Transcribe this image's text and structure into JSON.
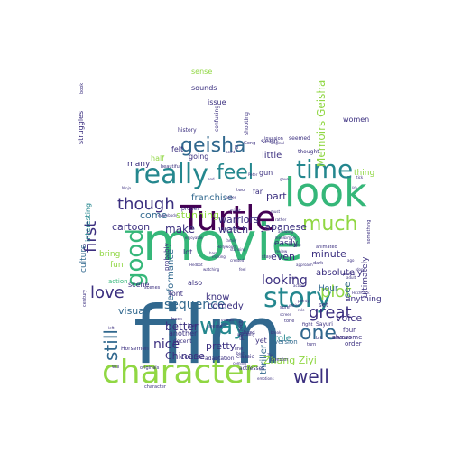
{
  "colors": {
    "background": "#ffffff",
    "dark_purple": "#440154",
    "indigo": "#3b2f7f",
    "blue": "#31688e",
    "teal": "#24878e",
    "green": "#35b779",
    "lime": "#90d743",
    "yellow": "#d8e219"
  },
  "words": [
    {
      "text": "movie",
      "c": "green"
    },
    {
      "text": "film",
      "c": "blue"
    },
    {
      "text": "Turtle",
      "c": "dark_purple"
    },
    {
      "text": "look",
      "c": "green"
    },
    {
      "text": "character",
      "c": "lime"
    },
    {
      "text": "really",
      "c": "teal"
    },
    {
      "text": "time",
      "c": "teal"
    },
    {
      "text": "story",
      "c": "teal"
    },
    {
      "text": "geisha",
      "c": "blue"
    },
    {
      "text": "feel",
      "c": "teal"
    },
    {
      "text": "good",
      "c": "green"
    },
    {
      "text": "much",
      "c": "lime"
    },
    {
      "text": "way",
      "c": "teal"
    },
    {
      "text": "love",
      "c": "indigo"
    },
    {
      "text": "well",
      "c": "indigo"
    },
    {
      "text": "still",
      "c": "blue"
    },
    {
      "text": "first",
      "c": "indigo"
    },
    {
      "text": "though",
      "c": "indigo"
    },
    {
      "text": "one",
      "c": "blue"
    },
    {
      "text": "great",
      "c": "indigo"
    },
    {
      "text": "plot",
      "c": "lime"
    },
    {
      "text": "Memoirs Geisha",
      "c": "lime"
    },
    {
      "text": "sequence",
      "c": "blue"
    },
    {
      "text": "Japanese",
      "c": "indigo"
    },
    {
      "text": "looking",
      "c": "indigo"
    },
    {
      "text": "better",
      "c": "indigo"
    },
    {
      "text": "nice",
      "c": "indigo"
    },
    {
      "text": "Zhang Ziyi",
      "c": "lime"
    },
    {
      "text": "visual",
      "c": "blue"
    },
    {
      "text": "minute",
      "c": "indigo"
    },
    {
      "text": "warriors",
      "c": "indigo"
    },
    {
      "text": "make",
      "c": "indigo"
    },
    {
      "text": "watch",
      "c": "indigo"
    },
    {
      "text": "come",
      "c": "blue"
    },
    {
      "text": "stunning",
      "c": "lime"
    },
    {
      "text": "cartoon",
      "c": "indigo"
    },
    {
      "text": "franchise",
      "c": "blue"
    },
    {
      "text": "Chinese",
      "c": "indigo"
    },
    {
      "text": "pretty",
      "c": "indigo"
    },
    {
      "text": "comedy",
      "c": "indigo"
    },
    {
      "text": "know",
      "c": "indigo"
    },
    {
      "text": "part",
      "c": "indigo"
    },
    {
      "text": "little",
      "c": "indigo"
    },
    {
      "text": "even",
      "c": "indigo"
    },
    {
      "text": "see",
      "c": "blue"
    },
    {
      "text": "role",
      "c": "teal"
    },
    {
      "text": "voice",
      "c": "indigo"
    },
    {
      "text": "thriller",
      "c": "blue"
    },
    {
      "text": "absolutely",
      "c": "indigo"
    },
    {
      "text": "ultimately",
      "c": "indigo"
    },
    {
      "text": "anything",
      "c": "indigo"
    },
    {
      "text": "easily",
      "c": "indigo"
    },
    {
      "text": "performance",
      "c": "blue"
    },
    {
      "text": "Hour",
      "c": "blue"
    },
    {
      "text": "many",
      "c": "indigo"
    },
    {
      "text": "felt",
      "c": "indigo"
    },
    {
      "text": "fun",
      "c": "lime"
    },
    {
      "text": "bring",
      "c": "lime"
    },
    {
      "text": "culture",
      "c": "blue"
    },
    {
      "text": "interesting",
      "c": "teal"
    },
    {
      "text": "struggles",
      "c": "indigo"
    },
    {
      "text": "sense",
      "c": "lime"
    },
    {
      "text": "sounds",
      "c": "indigo"
    },
    {
      "text": "issue",
      "c": "indigo"
    },
    {
      "text": "going",
      "c": "indigo"
    },
    {
      "text": "seen",
      "c": "indigo"
    },
    {
      "text": "gun",
      "c": "indigo"
    },
    {
      "text": "thing",
      "c": "lime"
    },
    {
      "text": "women",
      "c": "indigo"
    },
    {
      "text": "course",
      "c": "indigo"
    },
    {
      "text": "another",
      "c": "indigo"
    },
    {
      "text": "also",
      "c": "indigo"
    },
    {
      "text": "font",
      "c": "indigo"
    },
    {
      "text": "lot",
      "c": "indigo"
    },
    {
      "text": "scene",
      "c": "indigo"
    },
    {
      "text": "action",
      "c": "green"
    },
    {
      "text": "probably",
      "c": "indigo"
    },
    {
      "text": "yet",
      "c": "indigo"
    },
    {
      "text": "set",
      "c": "indigo"
    },
    {
      "text": "shows",
      "c": "indigo"
    },
    {
      "text": "order",
      "c": "indigo"
    },
    {
      "text": "four",
      "c": "indigo"
    },
    {
      "text": "awesome",
      "c": "indigo"
    },
    {
      "text": "thought",
      "c": "indigo"
    },
    {
      "text": "far",
      "c": "indigo"
    },
    {
      "text": "version",
      "c": "blue"
    },
    {
      "text": "shooting",
      "c": "indigo"
    },
    {
      "text": "history",
      "c": "indigo"
    },
    {
      "text": "confusing",
      "c": "indigo"
    },
    {
      "text": "seemed",
      "c": "indigo"
    },
    {
      "text": "adaptation",
      "c": "indigo"
    },
    {
      "text": "actresses",
      "c": "indigo"
    },
    {
      "text": "classic",
      "c": "indigo"
    },
    {
      "text": "decent",
      "c": "indigo"
    },
    {
      "text": "originals",
      "c": "indigo"
    },
    {
      "text": "will",
      "c": "indigo"
    },
    {
      "text": "beautiful",
      "c": "indigo"
    },
    {
      "text": "dark",
      "c": "indigo"
    },
    {
      "text": "Horsemen",
      "c": "indigo"
    },
    {
      "text": "Sayuri",
      "c": "indigo"
    },
    {
      "text": "invasion",
      "c": "indigo"
    },
    {
      "text": "proper",
      "c": "indigo"
    },
    {
      "text": "book",
      "c": "indigo"
    },
    {
      "text": "half",
      "c": "lime"
    },
    {
      "text": "perfect",
      "c": "indigo"
    },
    {
      "text": "hand",
      "c": "indigo"
    },
    {
      "text": "bit",
      "c": "indigo"
    },
    {
      "text": "line",
      "c": "indigo"
    },
    {
      "text": "tone",
      "c": "indigo"
    },
    {
      "text": "true",
      "c": "indigo"
    },
    {
      "text": "stay",
      "c": "indigo"
    },
    {
      "text": "fight",
      "c": "indigo"
    },
    {
      "text": "sure",
      "c": "indigo"
    },
    {
      "text": "making",
      "c": "indigo"
    },
    {
      "text": "turn",
      "c": "indigo"
    },
    {
      "text": "director",
      "c": "indigo"
    },
    {
      "text": "character",
      "c": "indigo"
    },
    {
      "text": "scenes",
      "c": "indigo"
    },
    {
      "text": "plays",
      "c": "indigo"
    },
    {
      "text": "seems",
      "c": "indigo"
    },
    {
      "text": "done",
      "c": "indigo"
    },
    {
      "text": "century",
      "c": "indigo"
    },
    {
      "text": "Ninja",
      "c": "indigo"
    },
    {
      "text": "Peter",
      "c": "indigo"
    },
    {
      "text": "role",
      "c": "indigo"
    },
    {
      "text": "action",
      "c": "indigo"
    },
    {
      "text": "stunning",
      "c": "indigo"
    },
    {
      "text": "feel",
      "c": "indigo"
    },
    {
      "text": "end",
      "c": "indigo"
    },
    {
      "text": "best",
      "c": "indigo"
    },
    {
      "text": "emotions",
      "c": "indigo"
    },
    {
      "text": "coming",
      "c": "indigo"
    },
    {
      "text": "Li",
      "c": "indigo"
    },
    {
      "text": "Gong",
      "c": "indigo"
    },
    {
      "text": "tick",
      "c": "indigo"
    },
    {
      "text": "life",
      "c": "indigo"
    },
    {
      "text": "everybody",
      "c": "indigo"
    },
    {
      "text": "watching",
      "c": "indigo"
    },
    {
      "text": "two",
      "c": "indigo"
    },
    {
      "text": "actually",
      "c": "indigo"
    },
    {
      "text": "point",
      "c": "indigo"
    },
    {
      "text": "might",
      "c": "indigo"
    },
    {
      "text": "must",
      "c": "indigo"
    },
    {
      "text": "rather",
      "c": "indigo"
    },
    {
      "text": "something",
      "c": "indigo"
    },
    {
      "text": "overall",
      "c": "indigo"
    },
    {
      "text": "animated",
      "c": "indigo"
    },
    {
      "text": "family",
      "c": "indigo"
    },
    {
      "text": "young",
      "c": "indigo"
    },
    {
      "text": "hard",
      "c": "indigo"
    },
    {
      "text": "original",
      "c": "indigo"
    },
    {
      "text": "gave",
      "c": "indigo"
    },
    {
      "text": "back",
      "c": "indigo"
    },
    {
      "text": "left",
      "c": "indigo"
    },
    {
      "text": "ago",
      "c": "indigo"
    },
    {
      "text": "amazing",
      "c": "indigo"
    },
    {
      "text": "Hollywood",
      "c": "indigo"
    },
    {
      "text": "series",
      "c": "indigo"
    },
    {
      "text": "created",
      "c": "indigo"
    },
    {
      "text": "view",
      "c": "indigo"
    },
    {
      "text": "leads",
      "c": "indigo"
    },
    {
      "text": "simply",
      "c": "indigo"
    },
    {
      "text": "screen",
      "c": "indigo"
    },
    {
      "text": "entire",
      "c": "indigo"
    },
    {
      "text": "plenty",
      "c": "indigo"
    },
    {
      "text": "enjoyable",
      "c": "indigo"
    },
    {
      "text": "review",
      "c": "indigo"
    },
    {
      "text": "weight",
      "c": "indigo"
    },
    {
      "text": "approach",
      "c": "indigo"
    },
    {
      "text": "adult",
      "c": "indigo"
    },
    {
      "text": "Hedbot",
      "c": "indigo"
    },
    {
      "text": "Hitchcock",
      "c": "indigo"
    },
    {
      "text": "break",
      "c": "indigo"
    },
    {
      "text": "Ziyi",
      "c": "indigo"
    }
  ]
}
